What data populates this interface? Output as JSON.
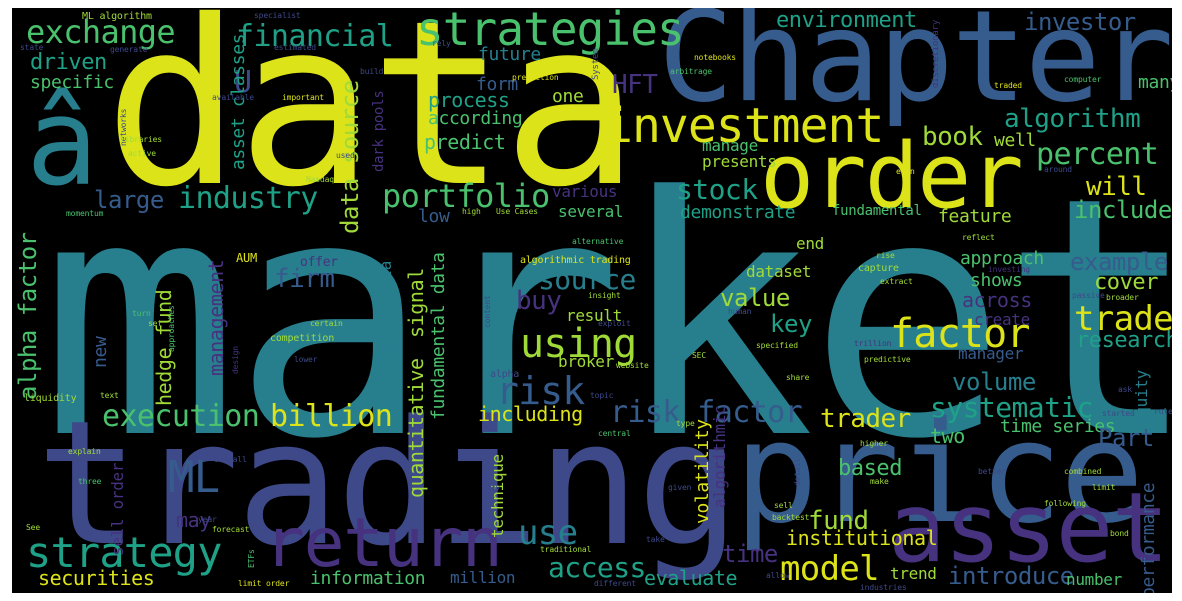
{
  "title": "",
  "colors": {
    "background": "#000000",
    "palette": {
      "yellow": "#dde319",
      "lime": "#a0da39",
      "green": "#4ac16d",
      "seagreen": "#1fa187",
      "teal": "#277f8e",
      "blue": "#365c8d",
      "indigo": "#46327e",
      "purple": "#440154"
    }
  },
  "words": {
    "market": "market",
    "data": "data",
    "chapter": "Chapter",
    "trading": "trading",
    "price": "price",
    "a_circ": "â",
    "order": "order",
    "asset": "asset",
    "return": "return",
    "investment": "investment",
    "strategies": "strategies",
    "exchange": "exchange",
    "strategy": "strategy",
    "factor": "factor",
    "using": "using",
    "risk": "risk",
    "trade": "trade",
    "model": "model",
    "financial": "financial",
    "portfolio": "portfolio",
    "industry": "industry",
    "ml": "ML",
    "execution": "execution",
    "billion": "billion",
    "risk_factor": "risk factor",
    "systematic": "systematic",
    "percent": "percent",
    "algorithm": "algorithm",
    "book": "book",
    "stock": "stock",
    "will": "will",
    "include": "include",
    "investor": "investor",
    "environment": "environment",
    "data_source": "data source",
    "alpha_factor": "alpha factor",
    "driven": "driven",
    "large": "large",
    "hft": "HFT",
    "u": "U",
    "firm": "firm",
    "source": "source",
    "buy": "buy",
    "value": "value",
    "key": "key",
    "example": "example",
    "cover": "cover",
    "research": "research",
    "volume": "volume",
    "trader": "trader",
    "fund": "fund",
    "institutional": "institutional",
    "access": "access",
    "evaluate": "evaluate",
    "introduce": "introduce",
    "securities": "securities",
    "information": "information",
    "use": "use",
    "time": "time",
    "time_series": "time series",
    "part": "Part",
    "two": "two",
    "based": "based",
    "performance": "performance",
    "equity": "equity",
    "process": "process",
    "according": "according",
    "predict": "predict",
    "specific": "specific",
    "future": "future",
    "form": "form",
    "one": "one",
    "well": "well",
    "demonstrate": "demonstrate",
    "feature": "feature",
    "fundamental": "fundamental",
    "several": "several",
    "low": "low",
    "various": "various",
    "management": "management",
    "hedge_fund": "hedge fund",
    "new": "new",
    "quantitative": "quantitative",
    "signal": "signal",
    "fundamental_data": "fundamental data",
    "alternative_data": "alternative data",
    "asset_classes": "asset classes",
    "dark_pools": "dark pools",
    "many": "many",
    "manage": "manage",
    "presents": "presents",
    "end": "end",
    "dataset": "dataset",
    "approach": "approach",
    "shows": "shows",
    "across": "across",
    "create": "create",
    "manager": "manager",
    "result": "result",
    "broker": "broker",
    "including": "including",
    "volatility": "volatility",
    "algorithmic": "algorithmic",
    "technique": "technique",
    "sell_order": "sell order",
    "may": "may",
    "million": "million",
    "number": "number",
    "trend": "trend",
    "offer": "offer",
    "aum": "AUM",
    "algorithmic_trading": "algorithmic trading",
    "ml_algorithm": "ML algorithm",
    "specialist": "specialist",
    "state": "state",
    "generate": "generate",
    "estimated": "estimated",
    "rely": "rely",
    "build": "build",
    "prediction": "prediction",
    "system": "System",
    "notebooks": "notebooks",
    "arbitrage": "arbitrage",
    "discretionary": "discretionary",
    "traded": "traded",
    "computer": "computer",
    "available": "available",
    "important": "important",
    "networks": "networks",
    "libraries": "libraries",
    "active": "active",
    "used": "used",
    "nasdaq": "Nasdaq",
    "momentum": "momentum",
    "high": "high",
    "use_cases": "Use Cases",
    "alternative": "alternative",
    "even": "even",
    "around": "around",
    "reflect": "reflect",
    "rise": "rise",
    "capture": "capture",
    "extract": "extract",
    "investing": "investing",
    "passive": "passive",
    "broader": "broader",
    "insight": "insight",
    "exploit": "exploit",
    "turn": "turn",
    "set": "set",
    "approaches": "approaches",
    "competition": "competition",
    "certain": "certain",
    "content": "content",
    "human": "human",
    "trillion": "trillion",
    "specified": "specified",
    "predictive": "predictive",
    "sec": "SEC",
    "lower": "lower",
    "alpha": "alpha",
    "website": "website",
    "share": "share",
    "liquidity": "liquidity",
    "text": "text",
    "topic": "topic",
    "design": "design",
    "ask": "ask",
    "started": "started",
    "rule": "rule",
    "type": "type",
    "central": "central",
    "higher": "higher",
    "explain": "explain",
    "overall": "overall",
    "three": "three",
    "day": "day",
    "given": "given",
    "detail": "detail",
    "make": "make",
    "better": "better",
    "combined": "combined",
    "limit": "limit",
    "sell": "sell",
    "backtest": "backtest",
    "following": "following",
    "bond": "bond",
    "see": "See",
    "year": "year",
    "forecast": "forecast",
    "etfs": "ETFs",
    "take": "take",
    "traditional": "traditional",
    "limit_order": "limit order",
    "different": "different",
    "allow": "allow",
    "industries": "industries"
  }
}
